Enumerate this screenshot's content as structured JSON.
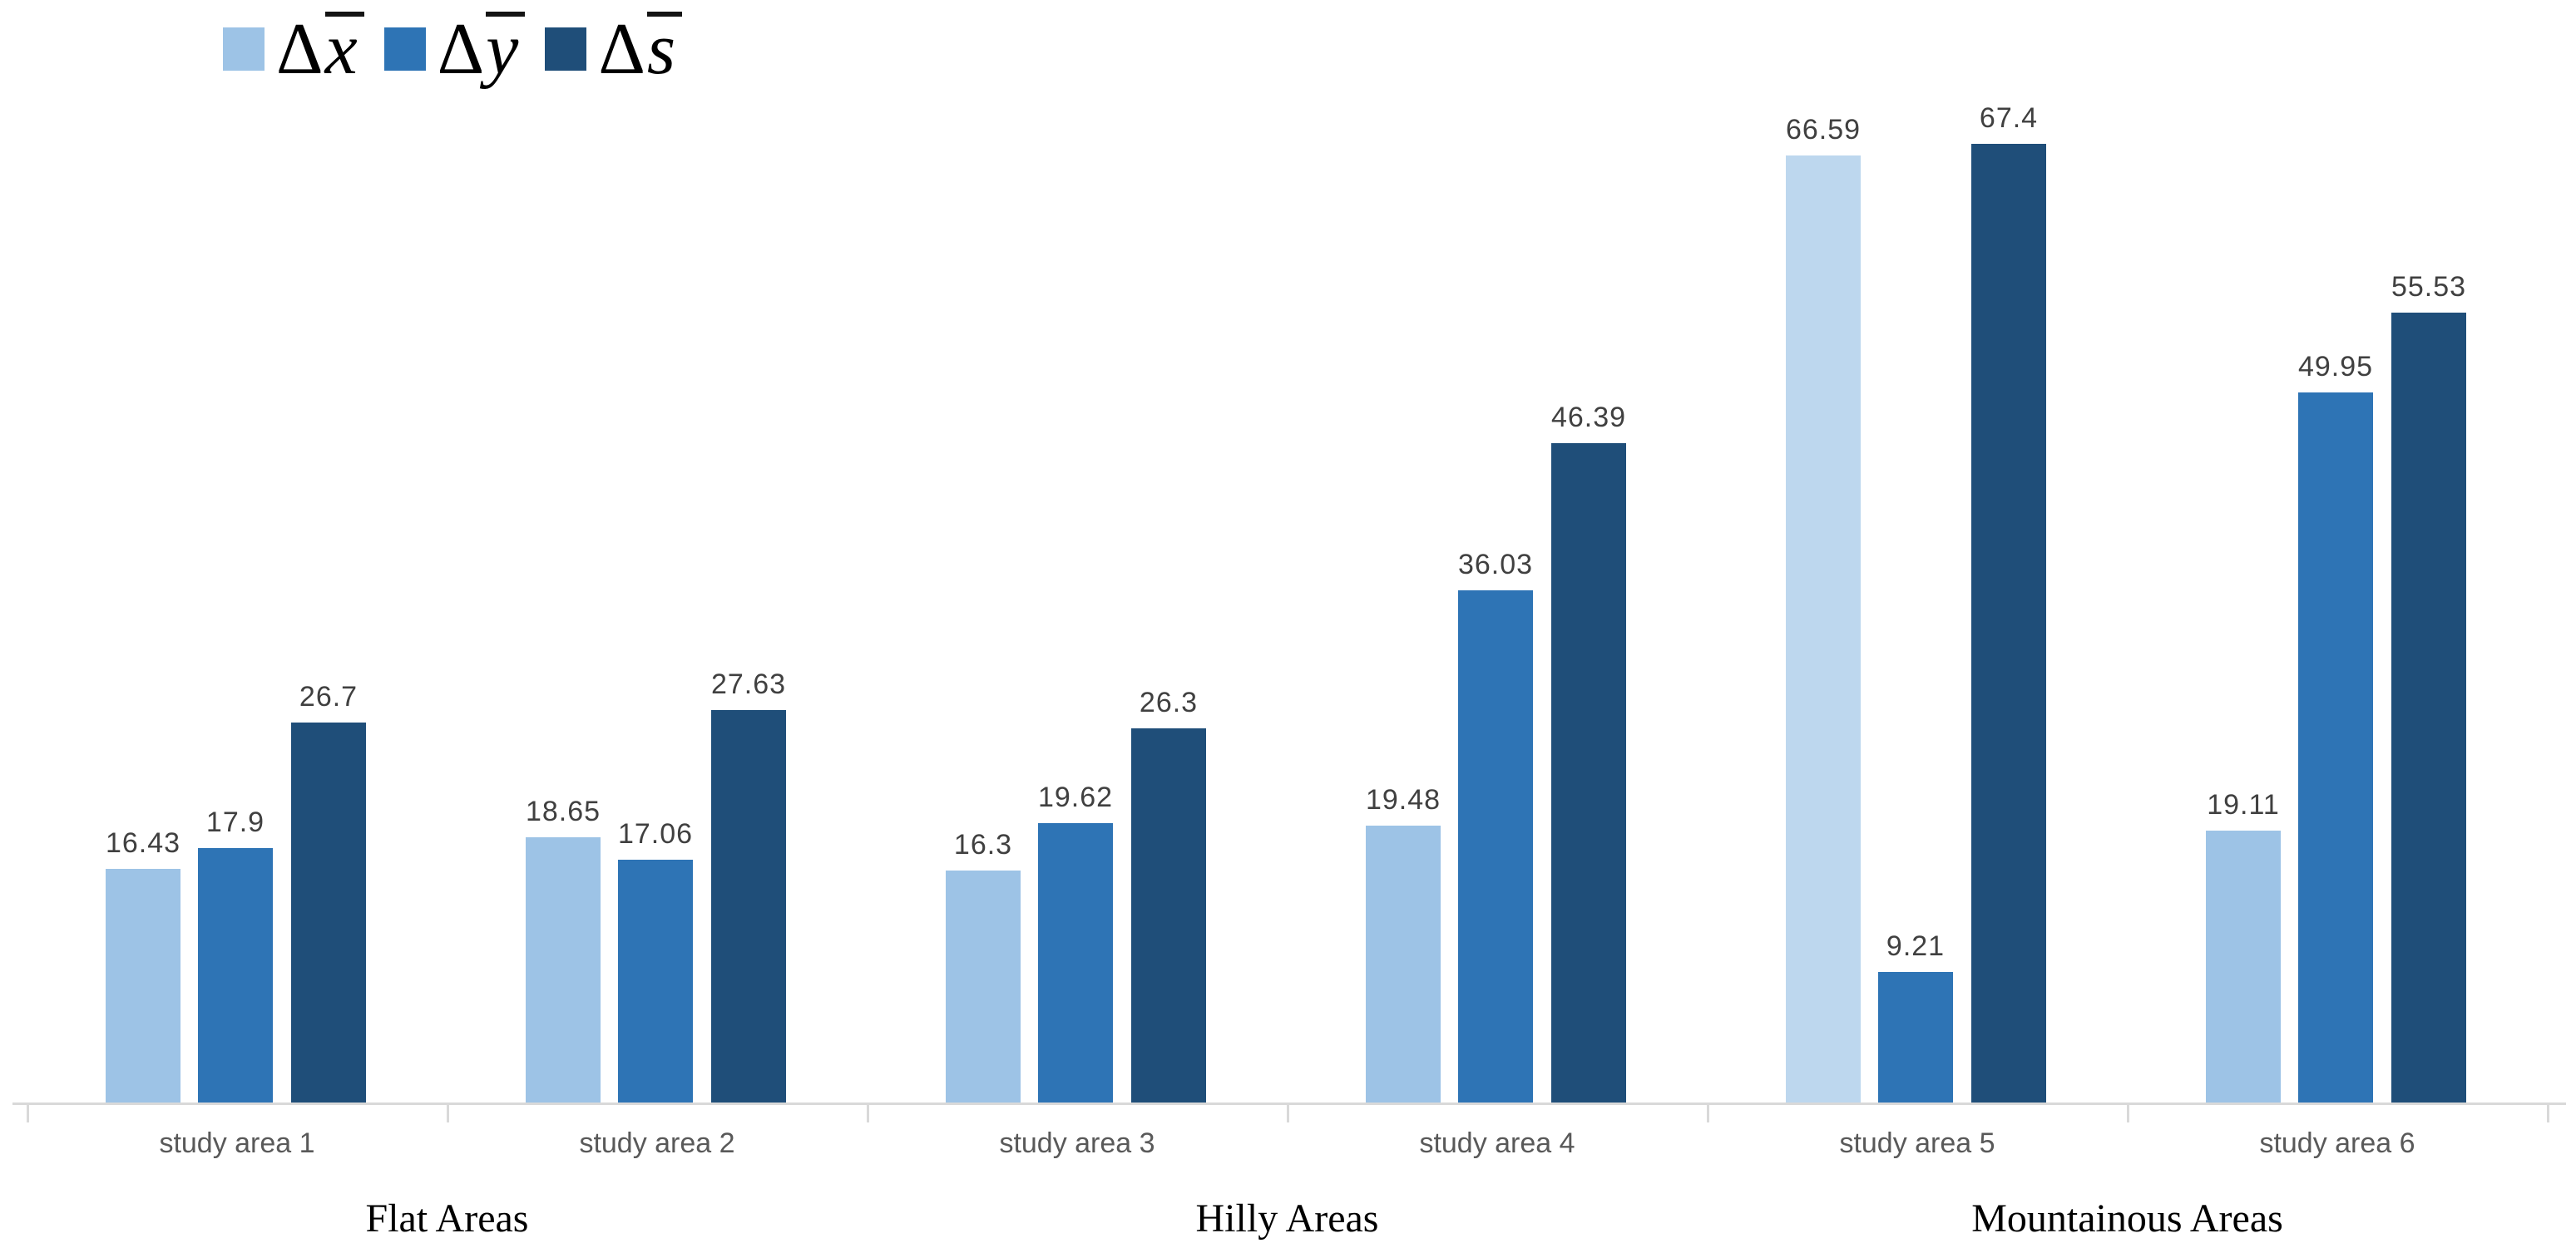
{
  "legend": {
    "items": [
      {
        "delta": "Δ",
        "letter": "x",
        "full_label": "Δx̄"
      },
      {
        "delta": "Δ",
        "letter": "y",
        "full_label": "Δȳ"
      },
      {
        "delta": "Δ",
        "letter": "s",
        "full_label": "Δs̄"
      }
    ]
  },
  "chart_data": {
    "type": "bar",
    "categories": [
      "study area 1",
      "study area 2",
      "study area 3",
      "study area 4",
      "study area 5",
      "study area 6"
    ],
    "category_groups": [
      {
        "label": "Flat Areas",
        "category_indexes": [
          0,
          1
        ]
      },
      {
        "label": "Hilly Areas",
        "category_indexes": [
          2,
          3
        ]
      },
      {
        "label": "Mountainous Areas",
        "category_indexes": [
          4,
          5
        ]
      }
    ],
    "series": [
      {
        "name": "Δx̄",
        "color": "#9DC3E6",
        "values": [
          16.43,
          18.65,
          16.3,
          19.48,
          66.59,
          19.11
        ]
      },
      {
        "name": "Δȳ",
        "color": "#2E74B5",
        "values": [
          17.9,
          17.06,
          19.62,
          36.03,
          9.21,
          49.95
        ]
      },
      {
        "name": "Δs̄",
        "color": "#1F4E79",
        "values": [
          26.7,
          27.63,
          26.3,
          46.39,
          67.4,
          55.53
        ]
      }
    ],
    "color_overrides": [
      {
        "series": 0,
        "category": 4,
        "color": "#BDD7EE"
      }
    ],
    "value_labels_shown": true,
    "title": "",
    "xlabel": "",
    "ylabel": "",
    "ylim": [
      0,
      70
    ],
    "gridlines": false,
    "y_axis_shown": false,
    "legend_position": "top-left",
    "axis_color": "#D9D9D9",
    "value_label_color": "#404040",
    "tick_label_color": "#595959",
    "group_label_color": "#000000"
  }
}
